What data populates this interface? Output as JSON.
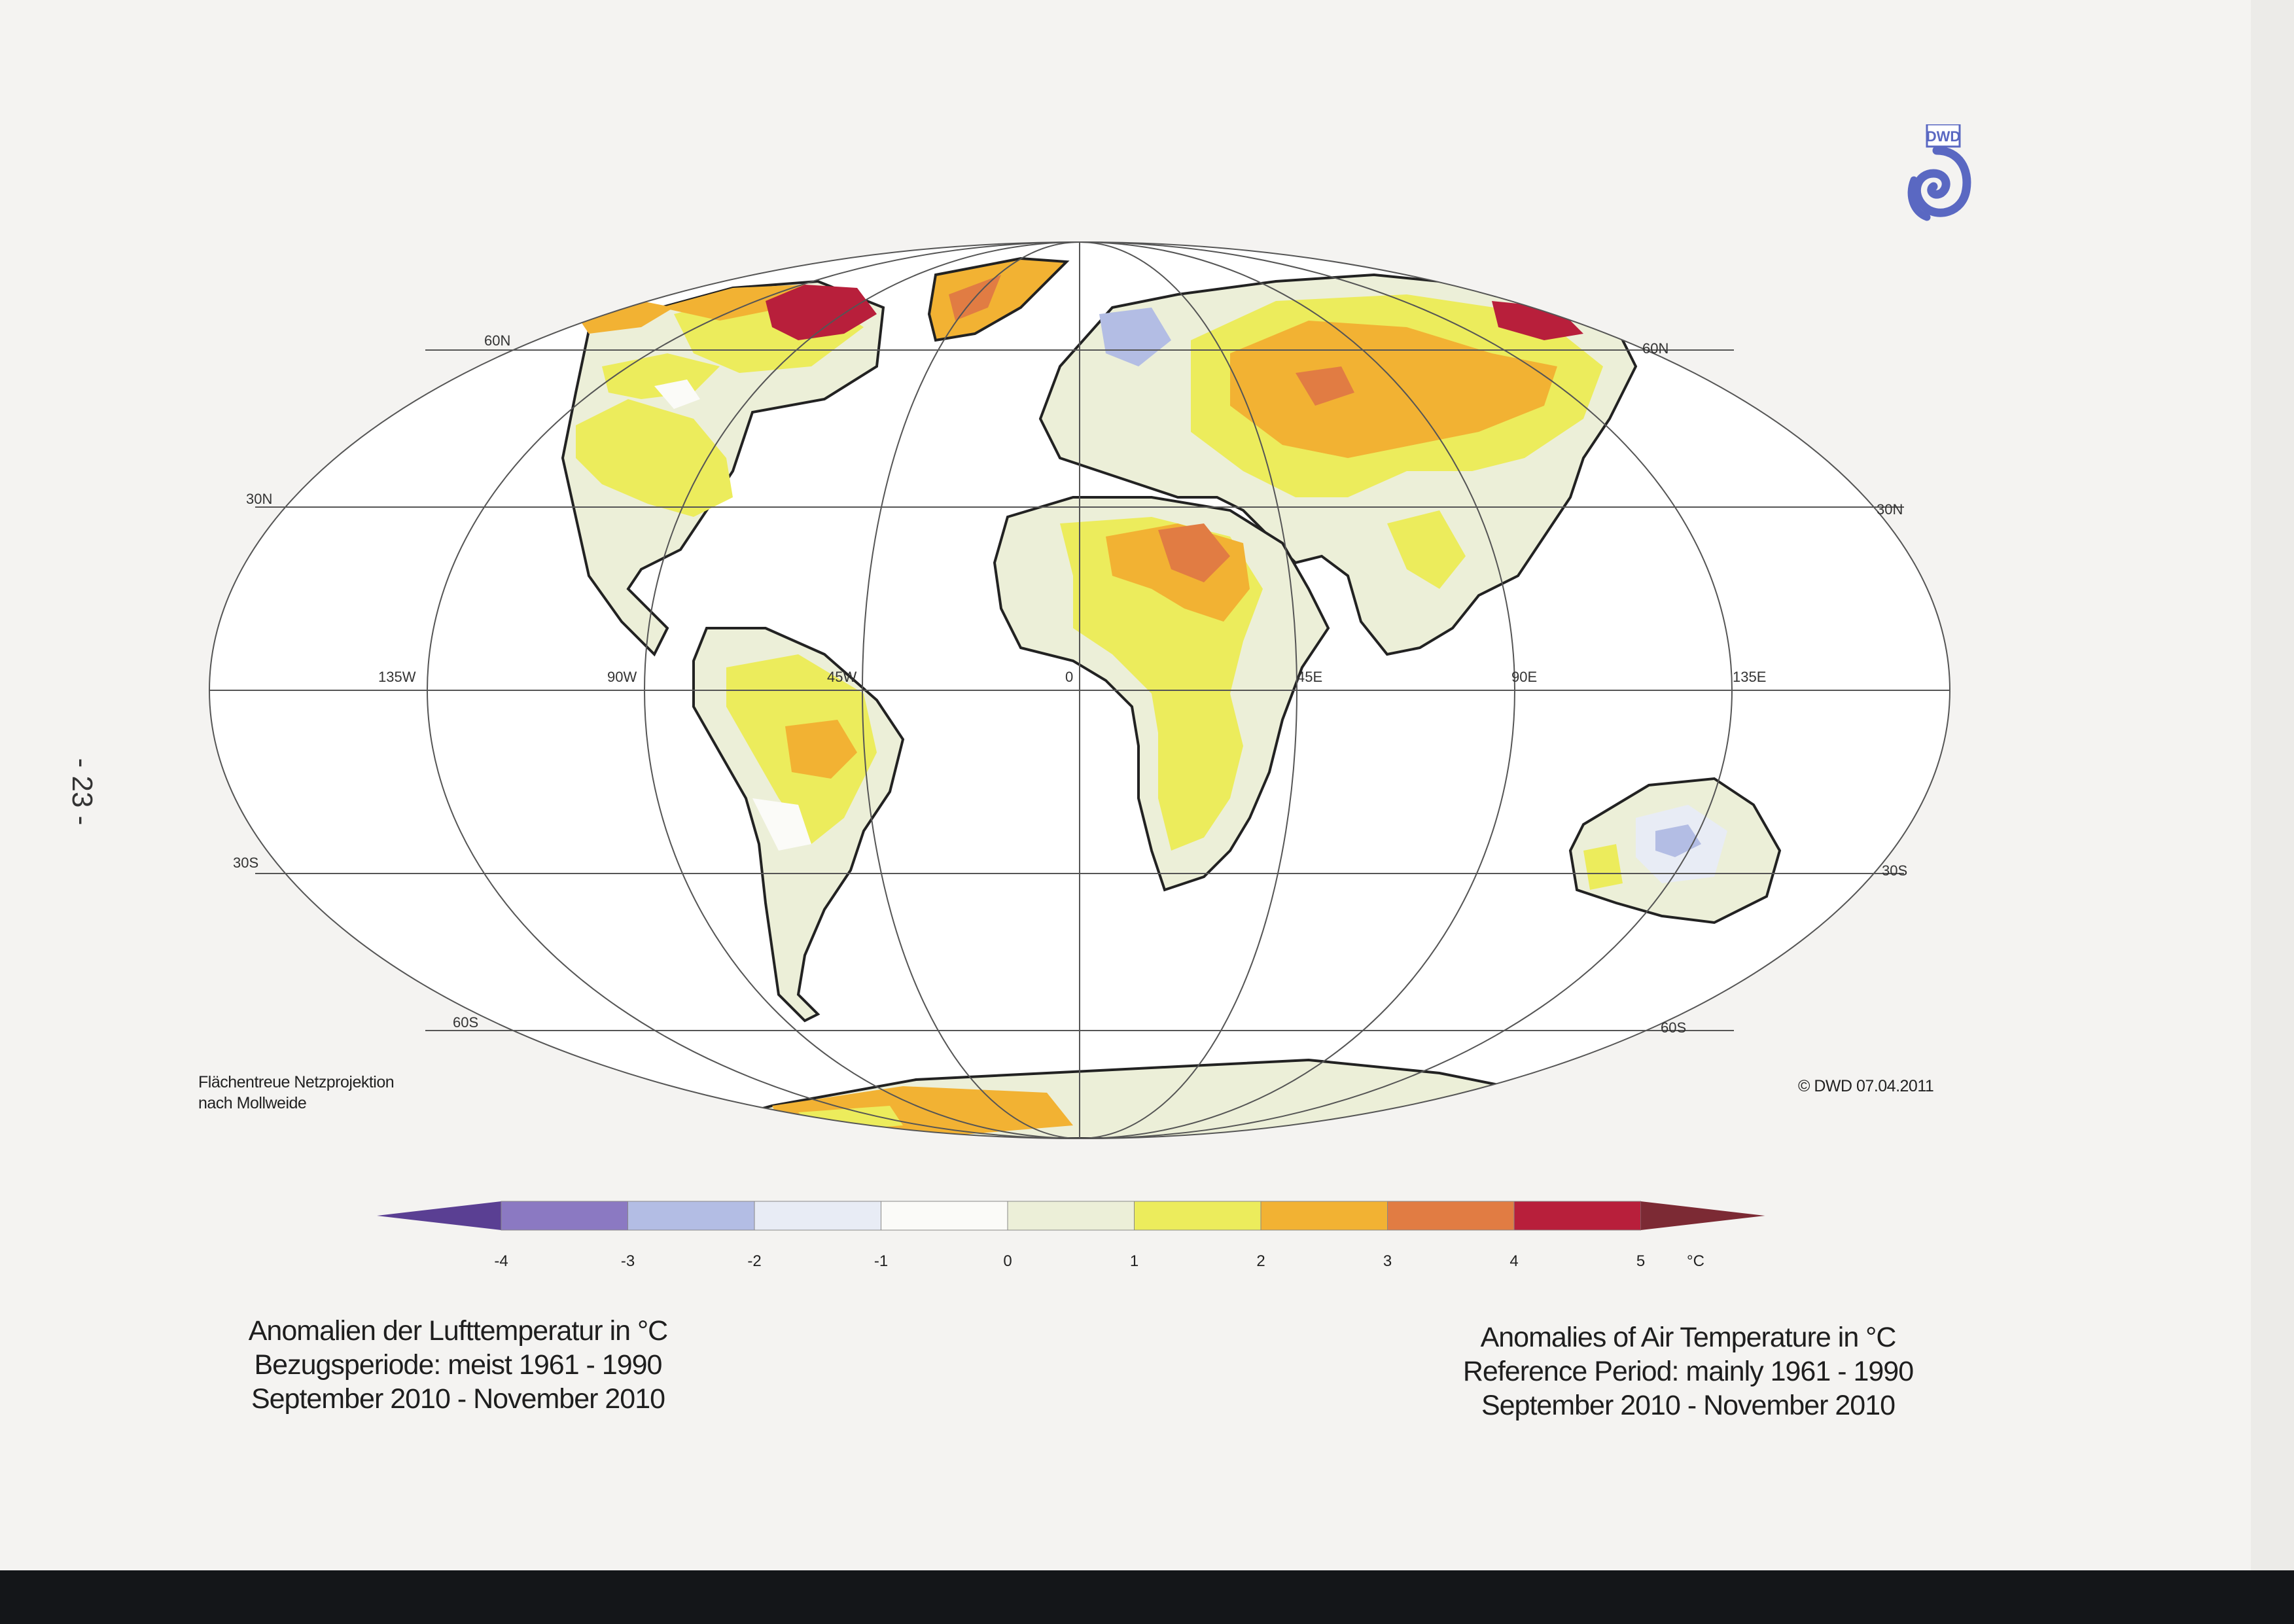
{
  "page_number": "- 23 -",
  "logo_text": "DWD",
  "projection_note": [
    "Flächentreue Netzprojektion",
    "nach Mollweide"
  ],
  "copyright": "© DWD 07.04.2011",
  "graticule": {
    "latitudes": [
      {
        "label_left": "60N",
        "label_right": "60N"
      },
      {
        "label_left": "30N",
        "label_right": "30N"
      },
      {
        "label_left": "30S",
        "label_right": "30S"
      },
      {
        "label_left": "60S",
        "label_right": "60S"
      }
    ],
    "longitudes": [
      "135W",
      "90W",
      "45W",
      "0",
      "45E",
      "90E",
      "135E"
    ]
  },
  "legend": {
    "unit": "°C",
    "ticks": [
      "-4",
      "-3",
      "-2",
      "-1",
      "0",
      "1",
      "2",
      "3",
      "4",
      "5"
    ],
    "classes": [
      {
        "range": "< -4",
        "color": "#5a3f93"
      },
      {
        "range": "-4 to -3",
        "color": "#8b79c2"
      },
      {
        "range": "-3 to -2",
        "color": "#b3bde4"
      },
      {
        "range": "-2 to -1",
        "color": "#e8ecf5"
      },
      {
        "range": "-1 to 0",
        "color": "#fbfbf8"
      },
      {
        "range": "0 to 1",
        "color": "#ecefd8"
      },
      {
        "range": "1 to 2",
        "color": "#ecec5c"
      },
      {
        "range": "2 to 3",
        "color": "#f2b233"
      },
      {
        "range": "3 to 4",
        "color": "#e17c43"
      },
      {
        "range": "4 to 5",
        "color": "#b81f3b"
      },
      {
        "range": "> 5",
        "color": "#7c2a34"
      }
    ]
  },
  "caption_de": [
    "Anomalien der Lufttemperatur in °C",
    "Bezugsperiode: meist 1961 - 1990",
    "September 2010 - November 2010"
  ],
  "caption_en": [
    "Anomalies of Air Temperature in °C",
    "Reference Period: mainly 1961 - 1990",
    "September 2010 - November 2010"
  ]
}
